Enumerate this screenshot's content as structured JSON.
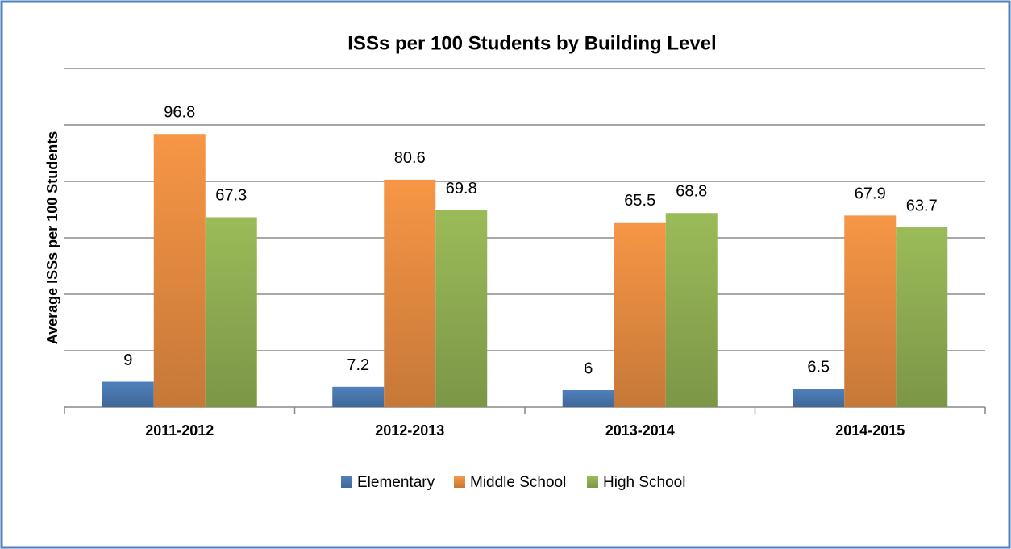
{
  "chart_data": {
    "type": "bar",
    "title": "ISSs per 100 Students by Building Level",
    "y_label": "Average ISSs per 100 Students",
    "categories": [
      "2011-2012",
      "2012-2013",
      "2013-2014",
      "2014-2015"
    ],
    "series": [
      {
        "name": "Elementary",
        "color": "#4f81bd",
        "values": [
          9,
          7.2,
          6,
          6.5
        ]
      },
      {
        "name": "Middle School",
        "color": "#f79646",
        "values": [
          96.8,
          80.6,
          65.5,
          67.9
        ]
      },
      {
        "name": "High School",
        "color": "#9bbb59",
        "values": [
          67.3,
          69.8,
          68.8,
          63.7
        ]
      }
    ],
    "ylim": [
      0,
      120
    ],
    "yticks": [
      0,
      20,
      40,
      60,
      80,
      100,
      120
    ],
    "grid": true,
    "legend": "bottom"
  }
}
